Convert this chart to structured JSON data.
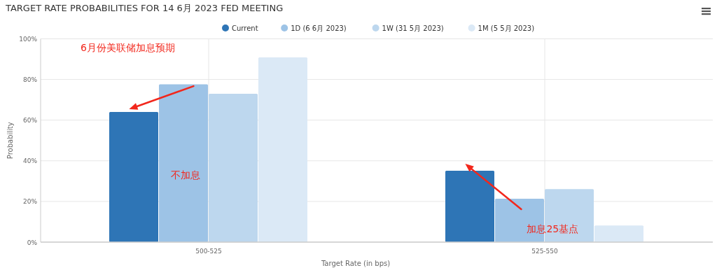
{
  "chart_data": {
    "type": "bar",
    "title": "TARGET RATE PROBABILITIES FOR 14 6月 2023 FED MEETING",
    "xlabel": "Target Rate (in bps)",
    "ylabel": "Probability",
    "categories": [
      "500-525",
      "525-550"
    ],
    "series": [
      {
        "name": "Current",
        "color": "#2e75b6",
        "values": [
          64,
          35.1
        ]
      },
      {
        "name": "1D (6 6月 2023)",
        "color": "#9dc3e6",
        "values": [
          77.6,
          21.3
        ]
      },
      {
        "name": "1W (31 5月 2023)",
        "color": "#bdd7ee",
        "values": [
          73,
          26.1
        ]
      },
      {
        "name": "1M (5 5月 2023)",
        "color": "#dbe9f6",
        "values": [
          90.9,
          8.2
        ]
      }
    ],
    "ylim": [
      0,
      100
    ],
    "yticks": [
      {
        "value": 0,
        "label": "0%"
      },
      {
        "value": 20,
        "label": "20%"
      },
      {
        "value": 40,
        "label": "40%"
      },
      {
        "value": 60,
        "label": "60%"
      },
      {
        "value": 80,
        "label": "80%"
      },
      {
        "value": 100,
        "label": "100%"
      }
    ],
    "grid": true,
    "legend": "top",
    "marker": "circle",
    "annotations": [
      "6月份美联储加息预期",
      "不加息",
      "加息25基点"
    ]
  }
}
